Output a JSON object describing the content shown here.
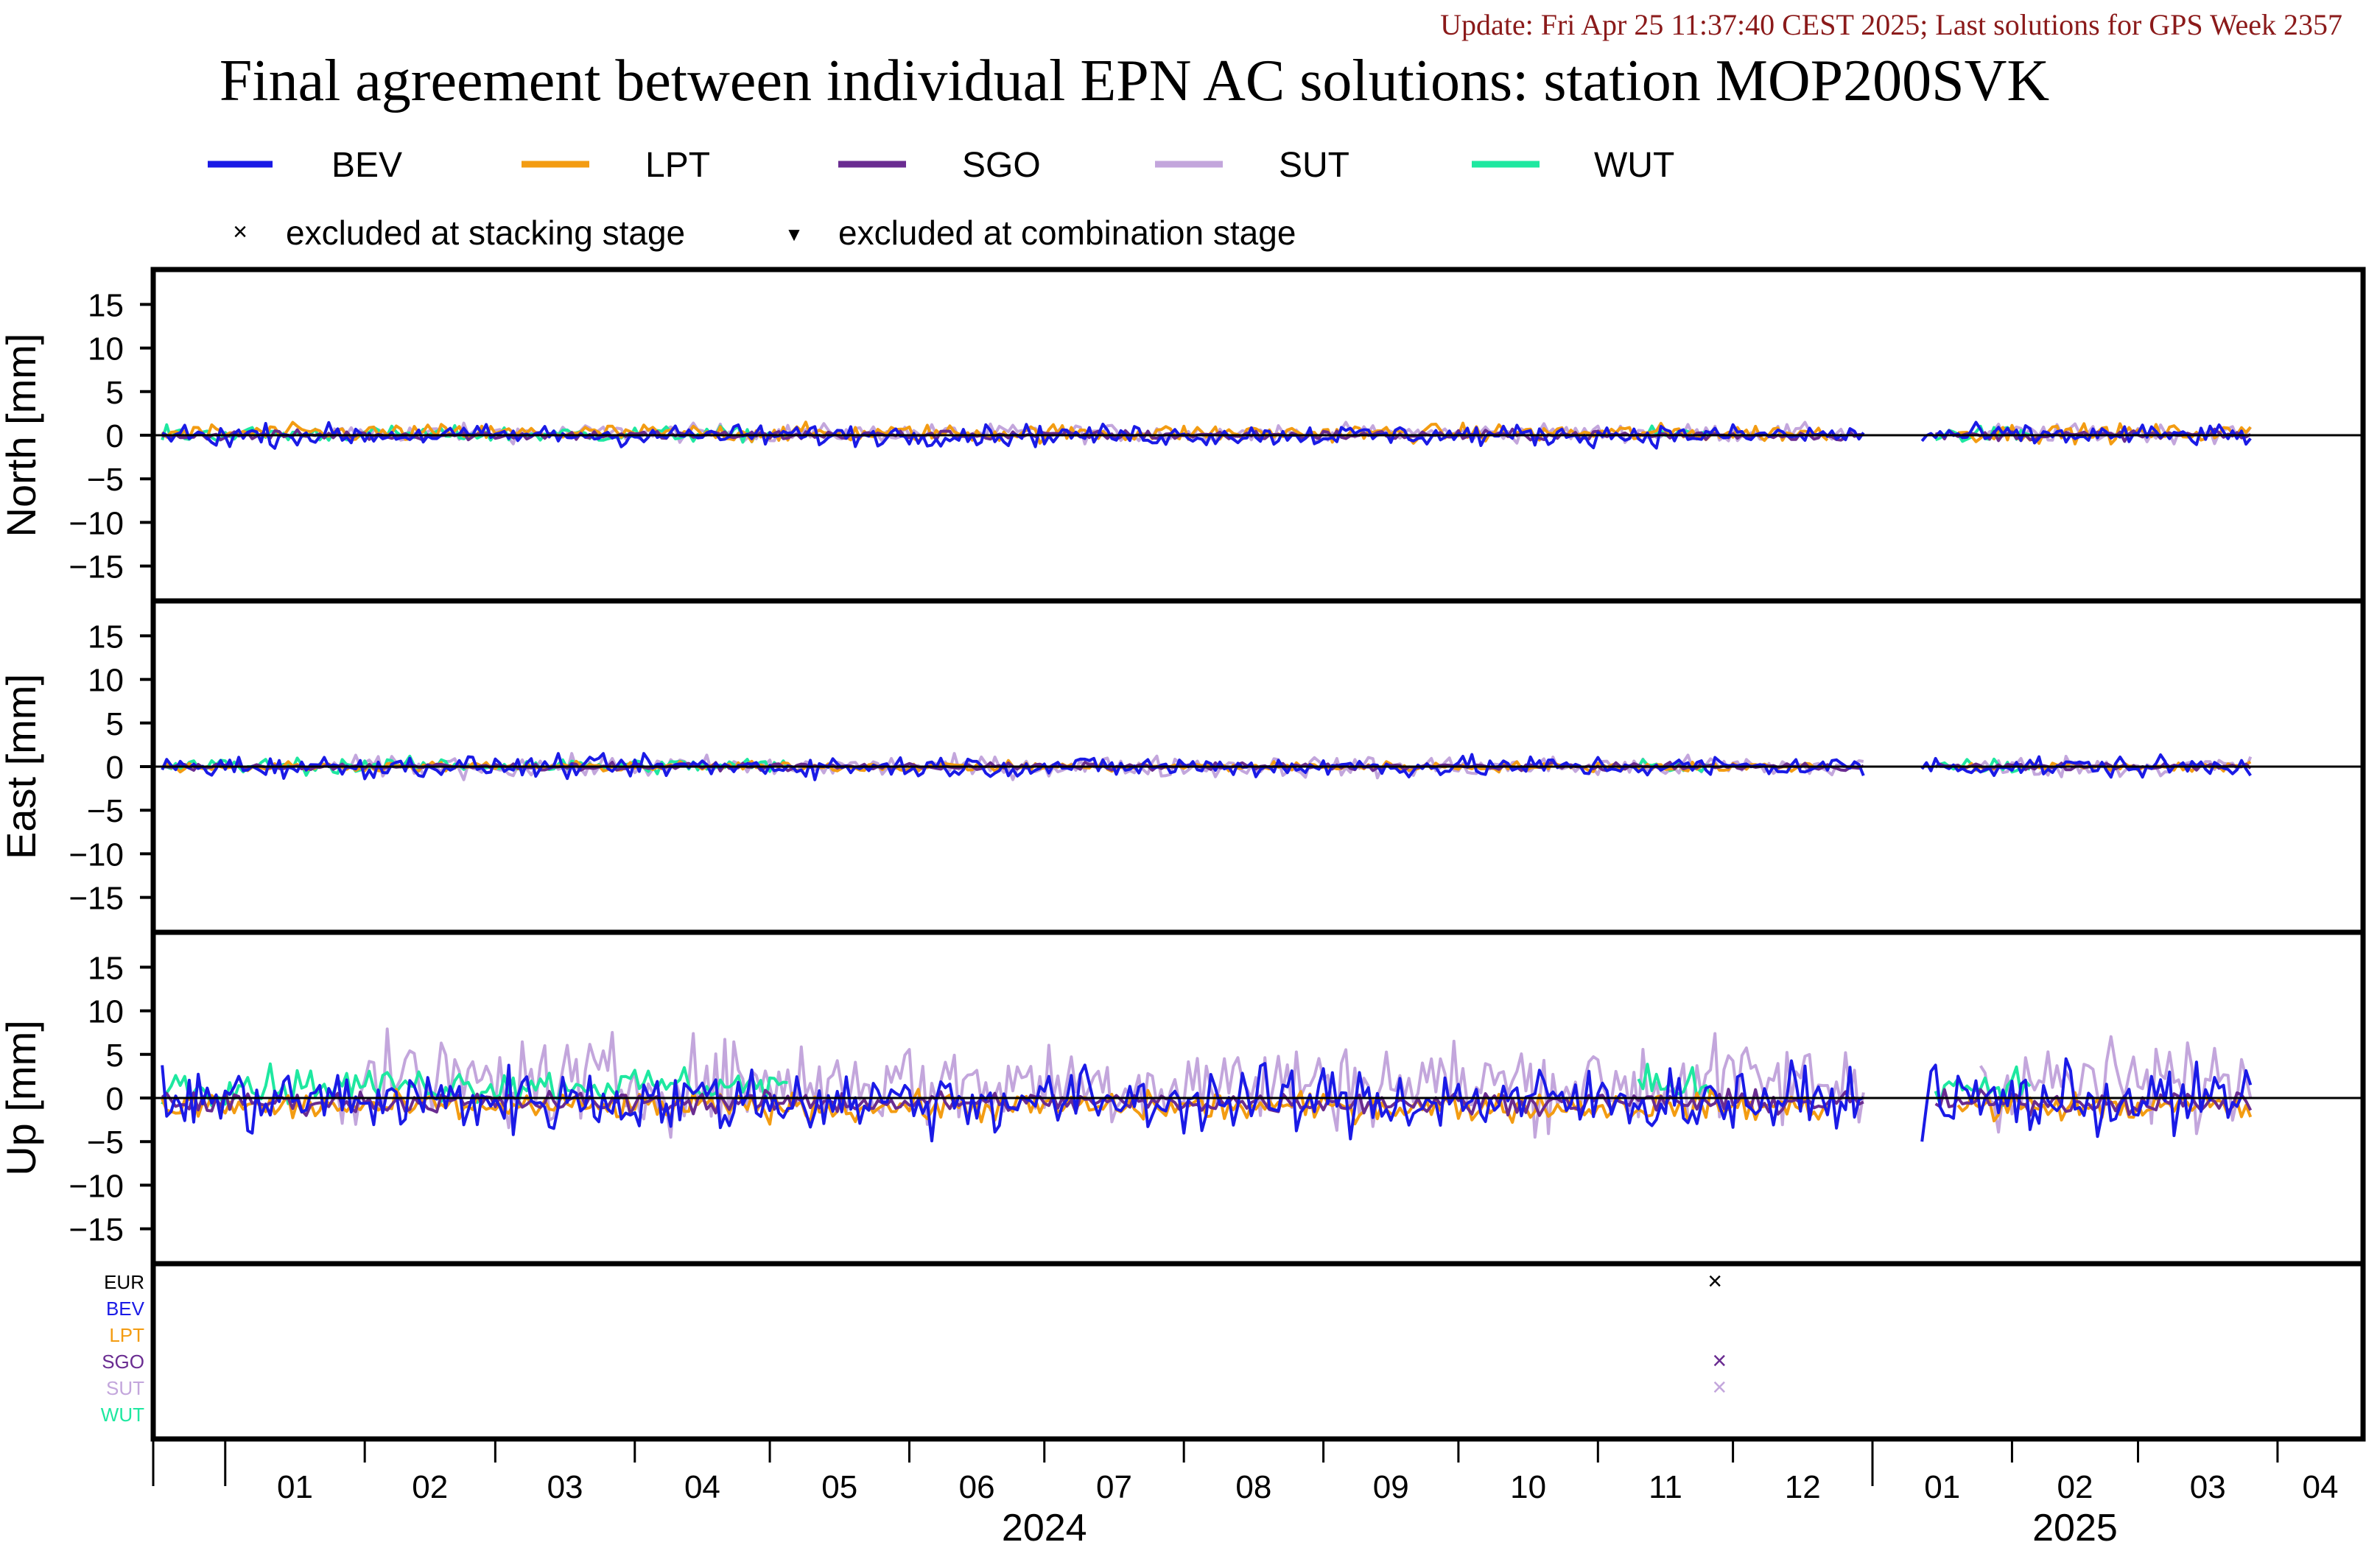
{
  "update_text": "Update: Fri Apr 25 11:37:40 CEST 2025; Last solutions for GPS Week 2357",
  "title": "Final agreement between individual EPN AC solutions: station MOP200SVK",
  "legend": {
    "series": [
      {
        "name": "BEV",
        "color": "#1a1ae6"
      },
      {
        "name": "LPT",
        "color": "#f39c12"
      },
      {
        "name": "SGO",
        "color": "#6a2c91"
      },
      {
        "name": "SUT",
        "color": "#c3a6dc"
      },
      {
        "name": "WUT",
        "color": "#1ee8a0"
      }
    ],
    "markers": [
      {
        "symbol": "×",
        "label": "excluded at stacking stage"
      },
      {
        "symbol": "▼",
        "label": "excluded at combination stage"
      }
    ]
  },
  "colors": {
    "update_text": "#8b1a1a",
    "axis": "#000000",
    "zero_line": "#000000",
    "EUR": "#000000"
  },
  "chart_data": {
    "type": "line",
    "x_unit": "month",
    "x_ticks": [
      "01",
      "02",
      "03",
      "04",
      "05",
      "06",
      "07",
      "08",
      "09",
      "10",
      "11",
      "12",
      "01",
      "02",
      "03",
      "04"
    ],
    "x_tick_dates": [
      "2024-01",
      "2024-02",
      "2024-03",
      "2024-04",
      "2024-05",
      "2024-06",
      "2024-07",
      "2024-08",
      "2024-09",
      "2024-10",
      "2024-11",
      "2024-12",
      "2025-01",
      "2025-02",
      "2025-03",
      "2025-04"
    ],
    "years": [
      {
        "label": "2024"
      },
      {
        "label": "2025"
      }
    ],
    "xlim": [
      "2023-12-16",
      "2025-04-20"
    ],
    "panels": [
      {
        "ylabel": "North [mm]",
        "ylim": [
          -19,
          19
        ],
        "yticks": [
          15,
          10,
          5,
          0,
          -5,
          -10,
          -15
        ],
        "series": [
          {
            "name": "BEV",
            "approx_range": [
              -1.5,
              1.5
            ]
          },
          {
            "name": "LPT",
            "approx_range": [
              -1,
              1.5
            ]
          },
          {
            "name": "SGO",
            "approx_range": [
              -0.7,
              0.7
            ]
          },
          {
            "name": "SUT",
            "approx_range": [
              -1,
              1.5
            ]
          },
          {
            "name": "WUT",
            "approx_range": [
              -1,
              1.2
            ]
          }
        ]
      },
      {
        "ylabel": "East [mm]",
        "ylim": [
          -19,
          19
        ],
        "yticks": [
          15,
          10,
          5,
          0,
          -5,
          -10,
          -15
        ],
        "series": [
          {
            "name": "BEV",
            "approx_range": [
              -1.5,
              1.5
            ]
          },
          {
            "name": "LPT",
            "approx_range": [
              -0.7,
              0.7
            ]
          },
          {
            "name": "SGO",
            "approx_range": [
              -0.5,
              0.5
            ]
          },
          {
            "name": "SUT",
            "approx_range": [
              -1.5,
              1.5
            ]
          },
          {
            "name": "WUT",
            "approx_range": [
              -1,
              1.2
            ]
          }
        ]
      },
      {
        "ylabel": "Up [mm]",
        "ylim": [
          -19,
          19
        ],
        "yticks": [
          15,
          10,
          5,
          0,
          -5,
          -10,
          -15
        ],
        "series": [
          {
            "name": "BEV",
            "approx_range": [
              -5,
              4.5
            ]
          },
          {
            "name": "LPT",
            "approx_range": [
              -3,
              1
            ]
          },
          {
            "name": "SGO",
            "approx_range": [
              -2,
              1
            ]
          },
          {
            "name": "SUT",
            "approx_range": [
              -4.5,
              8
            ]
          },
          {
            "name": "WUT",
            "approx_range": [
              -1,
              4
            ]
          }
        ]
      }
    ],
    "exclusion_panel": {
      "rows": [
        "EUR",
        "BEV",
        "LPT",
        "SGO",
        "SUT",
        "WUT"
      ],
      "points": [
        {
          "row": "EUR",
          "date": "2024-11-27",
          "marker": "x"
        },
        {
          "row": "SGO",
          "date": "2024-11-28",
          "marker": "x"
        },
        {
          "row": "SUT",
          "date": "2024-11-28",
          "marker": "x"
        }
      ]
    }
  }
}
